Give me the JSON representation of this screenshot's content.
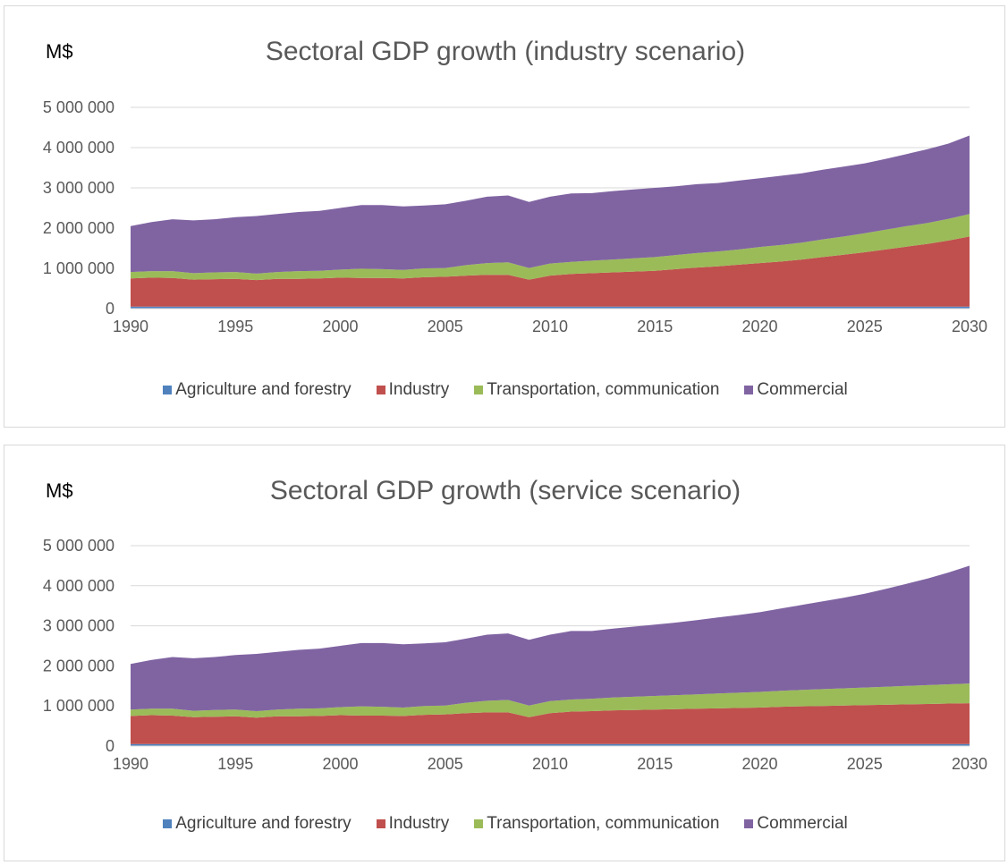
{
  "chart_data": [
    {
      "type": "area",
      "title": "Sectoral GDP growth (industry scenario)",
      "unit_label": "M$",
      "stacked": true,
      "grid": true,
      "legend_position": "bottom",
      "ylim": [
        0,
        5000000
      ],
      "y_ticks": [
        {
          "value": 0,
          "label": "0"
        },
        {
          "value": 1000000,
          "label": "1 000 000"
        },
        {
          "value": 2000000,
          "label": "2 000 000"
        },
        {
          "value": 3000000,
          "label": "3 000 000"
        },
        {
          "value": 4000000,
          "label": "4 000 000"
        },
        {
          "value": 5000000,
          "label": "5 000 000"
        }
      ],
      "xlim": [
        1990,
        2030
      ],
      "x_ticks": [
        "1990",
        "1995",
        "2000",
        "2005",
        "2010",
        "2015",
        "2020",
        "2025",
        "2030"
      ],
      "x": [
        1990,
        1991,
        1992,
        1993,
        1994,
        1995,
        1996,
        1997,
        1998,
        1999,
        2000,
        2001,
        2002,
        2003,
        2004,
        2005,
        2006,
        2007,
        2008,
        2009,
        2010,
        2011,
        2012,
        2013,
        2014,
        2015,
        2016,
        2017,
        2018,
        2019,
        2020,
        2021,
        2022,
        2023,
        2024,
        2025,
        2026,
        2027,
        2028,
        2029,
        2030
      ],
      "series": [
        {
          "name": "Agriculture and forestry",
          "color": "#4f81bd",
          "values": [
            50000,
            50000,
            50000,
            50000,
            50000,
            50000,
            50000,
            50000,
            50000,
            50000,
            50000,
            50000,
            50000,
            50000,
            50000,
            50000,
            50000,
            50000,
            50000,
            50000,
            50000,
            50000,
            50000,
            50000,
            50000,
            50000,
            50000,
            50000,
            50000,
            50000,
            50000,
            50000,
            50000,
            50000,
            50000,
            50000,
            50000,
            50000,
            50000,
            50000,
            50000
          ]
        },
        {
          "name": "Industry",
          "color": "#c0504d",
          "values": [
            700000,
            720000,
            710000,
            670000,
            680000,
            690000,
            660000,
            690000,
            690000,
            700000,
            720000,
            710000,
            710000,
            700000,
            730000,
            740000,
            770000,
            790000,
            790000,
            670000,
            770000,
            810000,
            830000,
            850000,
            870000,
            890000,
            930000,
            970000,
            1000000,
            1040000,
            1080000,
            1120000,
            1170000,
            1230000,
            1290000,
            1350000,
            1420000,
            1490000,
            1560000,
            1640000,
            1740000
          ]
        },
        {
          "name": "Transportation, communication",
          "color": "#9bbb59",
          "values": [
            160000,
            160000,
            170000,
            160000,
            170000,
            170000,
            160000,
            170000,
            190000,
            190000,
            200000,
            230000,
            220000,
            210000,
            220000,
            220000,
            260000,
            290000,
            310000,
            290000,
            300000,
            300000,
            310000,
            320000,
            330000,
            340000,
            350000,
            360000,
            370000,
            380000,
            400000,
            410000,
            420000,
            440000,
            450000,
            470000,
            490000,
            510000,
            520000,
            540000,
            560000
          ]
        },
        {
          "name": "Commercial",
          "color": "#8064a2",
          "values": [
            1140000,
            1220000,
            1290000,
            1310000,
            1320000,
            1360000,
            1430000,
            1440000,
            1470000,
            1490000,
            1530000,
            1580000,
            1590000,
            1580000,
            1560000,
            1580000,
            1600000,
            1650000,
            1660000,
            1640000,
            1660000,
            1700000,
            1680000,
            1700000,
            1710000,
            1720000,
            1710000,
            1710000,
            1700000,
            1710000,
            1710000,
            1720000,
            1720000,
            1730000,
            1740000,
            1740000,
            1760000,
            1790000,
            1830000,
            1870000,
            1950000
          ]
        }
      ]
    },
    {
      "type": "area",
      "title": "Sectoral GDP growth (service scenario)",
      "unit_label": "M$",
      "stacked": true,
      "grid": true,
      "legend_position": "bottom",
      "ylim": [
        0,
        5000000
      ],
      "y_ticks": [
        {
          "value": 0,
          "label": "0"
        },
        {
          "value": 1000000,
          "label": "1 000 000"
        },
        {
          "value": 2000000,
          "label": "2 000 000"
        },
        {
          "value": 3000000,
          "label": "3 000 000"
        },
        {
          "value": 4000000,
          "label": "4 000 000"
        },
        {
          "value": 5000000,
          "label": "5 000 000"
        }
      ],
      "xlim": [
        1990,
        2030
      ],
      "x_ticks": [
        "1990",
        "1995",
        "2000",
        "2005",
        "2010",
        "2015",
        "2020",
        "2025",
        "2030"
      ],
      "x": [
        1990,
        1991,
        1992,
        1993,
        1994,
        1995,
        1996,
        1997,
        1998,
        1999,
        2000,
        2001,
        2002,
        2003,
        2004,
        2005,
        2006,
        2007,
        2008,
        2009,
        2010,
        2011,
        2012,
        2013,
        2014,
        2015,
        2016,
        2017,
        2018,
        2019,
        2020,
        2021,
        2022,
        2023,
        2024,
        2025,
        2026,
        2027,
        2028,
        2029,
        2030
      ],
      "series": [
        {
          "name": "Agriculture and forestry",
          "color": "#4f81bd",
          "values": [
            50000,
            50000,
            50000,
            50000,
            50000,
            50000,
            50000,
            50000,
            50000,
            50000,
            50000,
            50000,
            50000,
            50000,
            50000,
            50000,
            50000,
            50000,
            50000,
            50000,
            50000,
            50000,
            50000,
            50000,
            50000,
            50000,
            50000,
            50000,
            50000,
            50000,
            50000,
            50000,
            50000,
            50000,
            50000,
            50000,
            50000,
            50000,
            50000,
            50000,
            50000
          ]
        },
        {
          "name": "Industry",
          "color": "#c0504d",
          "values": [
            700000,
            720000,
            710000,
            670000,
            680000,
            690000,
            660000,
            690000,
            690000,
            700000,
            720000,
            710000,
            710000,
            700000,
            730000,
            740000,
            770000,
            790000,
            790000,
            670000,
            770000,
            810000,
            820000,
            840000,
            850000,
            860000,
            870000,
            880000,
            890000,
            900000,
            910000,
            930000,
            940000,
            950000,
            960000,
            970000,
            980000,
            990000,
            1000000,
            1010000,
            1020000
          ]
        },
        {
          "name": "Transportation, communication",
          "color": "#9bbb59",
          "values": [
            160000,
            160000,
            170000,
            160000,
            170000,
            170000,
            160000,
            170000,
            190000,
            190000,
            200000,
            230000,
            220000,
            210000,
            220000,
            220000,
            260000,
            290000,
            310000,
            290000,
            300000,
            300000,
            310000,
            320000,
            330000,
            340000,
            350000,
            360000,
            370000,
            380000,
            390000,
            400000,
            410000,
            420000,
            430000,
            440000,
            450000,
            460000,
            470000,
            480000,
            490000
          ]
        },
        {
          "name": "Commercial",
          "color": "#8064a2",
          "values": [
            1140000,
            1220000,
            1290000,
            1310000,
            1320000,
            1360000,
            1430000,
            1440000,
            1470000,
            1490000,
            1530000,
            1580000,
            1590000,
            1580000,
            1560000,
            1580000,
            1600000,
            1650000,
            1660000,
            1640000,
            1660000,
            1710000,
            1690000,
            1720000,
            1750000,
            1780000,
            1810000,
            1850000,
            1900000,
            1940000,
            1990000,
            2050000,
            2120000,
            2190000,
            2260000,
            2340000,
            2440000,
            2550000,
            2660000,
            2790000,
            2940000
          ]
        }
      ]
    }
  ]
}
